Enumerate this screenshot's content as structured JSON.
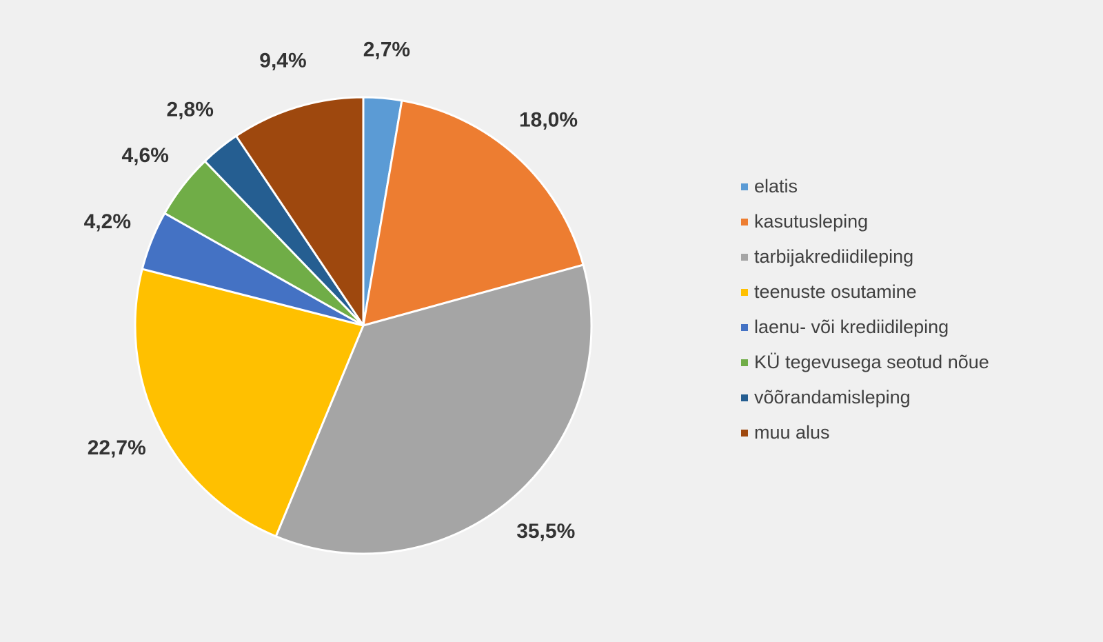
{
  "chart_data": {
    "type": "pie",
    "start_angle_deg": 0,
    "direction": "clockwise",
    "legend_position": "right",
    "slices": [
      {
        "name": "elatis",
        "value": 2.7,
        "label": "2,7%",
        "color": "#5b9bd5"
      },
      {
        "name": "kasutusleping",
        "value": 18.0,
        "label": "18,0%",
        "color": "#ed7d31"
      },
      {
        "name": "tarbijakrediidileping",
        "value": 35.5,
        "label": "35,5%",
        "color": "#a5a5a5"
      },
      {
        "name": "teenuste osutamine",
        "value": 22.7,
        "label": "22,7%",
        "color": "#ffc000"
      },
      {
        "name": "laenu- või krediidileping",
        "value": 4.2,
        "label": "4,2%",
        "color": "#4472c4"
      },
      {
        "name": "KÜ tegevusega seotud nõue",
        "value": 4.6,
        "label": "4,6%",
        "color": "#70ad47"
      },
      {
        "name": "võõrandamisleping",
        "value": 2.8,
        "label": "2,8%",
        "color": "#255e91"
      },
      {
        "name": "muu alus",
        "value": 9.4,
        "label": "9,4%",
        "color": "#9e480e"
      }
    ]
  }
}
